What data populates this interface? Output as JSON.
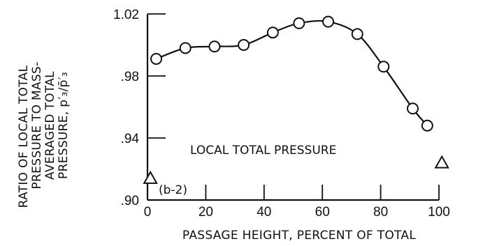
{
  "chart_data": {
    "type": "line",
    "xlabel": "PASSAGE HEIGHT, PERCENT OF TOTAL",
    "ylabel_lines": [
      "RATIO OF LOCAL TOTAL",
      "PRESSURE TO MASS-",
      "AVERAGED TOTAL",
      "PRESSURE, p′₃/p̄′₃"
    ],
    "xlim": [
      0,
      100
    ],
    "ylim": [
      0.9,
      1.02
    ],
    "x_ticks": [
      0,
      20,
      40,
      60,
      80,
      100
    ],
    "x_tick_labels": [
      "0",
      "20",
      "40",
      "60",
      "80",
      "100"
    ],
    "y_ticks": [
      0.9,
      0.94,
      0.98,
      1.02
    ],
    "y_tick_labels": [
      ".90",
      ".94",
      ".98",
      "1.02"
    ],
    "series": [
      {
        "marker": "circle",
        "x": [
          3,
          13,
          23,
          33,
          43,
          52,
          62,
          72,
          81,
          91,
          96
        ],
        "y": [
          0.991,
          0.998,
          0.999,
          1.0,
          1.008,
          1.014,
          1.015,
          1.007,
          0.986,
          0.959,
          0.948
        ]
      },
      {
        "marker": "triangle",
        "x": [
          1,
          101
        ],
        "y": [
          0.914,
          0.924
        ]
      }
    ],
    "annotations": {
      "curve_label": "LOCAL TOTAL PRESSURE",
      "panel_label": "(b-2)"
    },
    "grid": false
  }
}
